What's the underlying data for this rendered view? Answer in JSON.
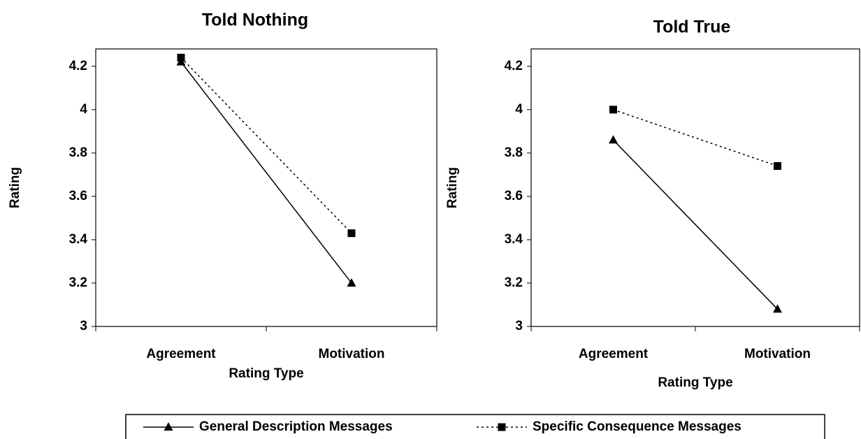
{
  "legend": {
    "names": [
      "General Description Messages",
      "Specific Consequence Messages"
    ]
  },
  "chart_data": [
    {
      "type": "line",
      "title": "Told Nothing",
      "x_label": "Rating Type",
      "y_label": "Rating",
      "categories": [
        "Agreement",
        "Motivation"
      ],
      "series": [
        {
          "color": "#000000",
          "marker": "triangle",
          "dash": "solid",
          "values": [
            4.22,
            3.2
          ]
        },
        {
          "color": "#000000",
          "marker": "square",
          "dash": "dotted",
          "values": [
            4.24,
            3.43
          ]
        }
      ],
      "ylim": [
        3,
        4.28
      ],
      "yticks": [
        3,
        3.2,
        3.4,
        3.6,
        3.8,
        4,
        4.2
      ]
    },
    {
      "type": "line",
      "title": "Told True",
      "x_label": "Rating Type",
      "y_label": "Rating",
      "categories": [
        "Agreement",
        "Motivation"
      ],
      "series": [
        {
          "color": "#000000",
          "marker": "triangle",
          "dash": "solid",
          "values": [
            3.86,
            3.08
          ]
        },
        {
          "color": "#000000",
          "marker": "square",
          "dash": "dotted",
          "values": [
            4.0,
            3.74
          ]
        }
      ],
      "ylim": [
        3,
        4.28
      ],
      "yticks": [
        3,
        3.2,
        3.4,
        3.6,
        3.8,
        4,
        4.2
      ]
    }
  ]
}
